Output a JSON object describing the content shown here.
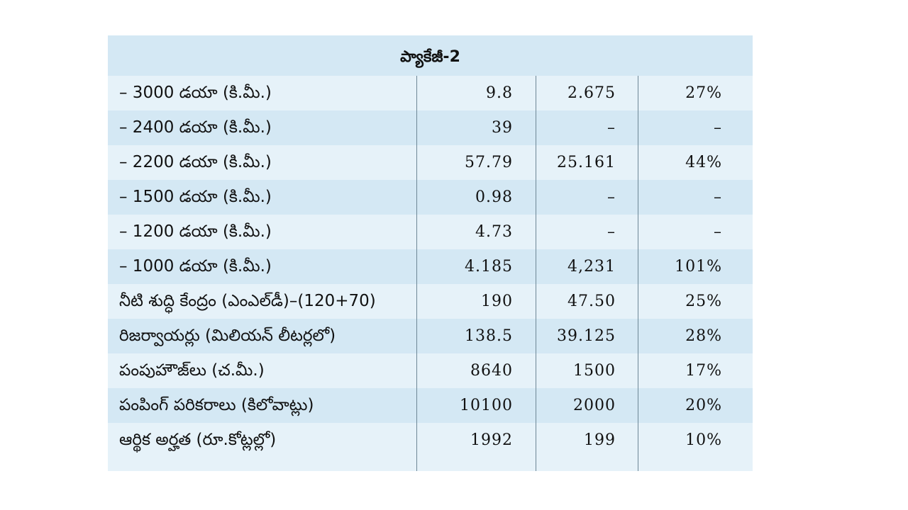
{
  "title": "ప్యాకేజీ-2",
  "rows": [
    {
      "label": "– 3000 డయా (కి.మీ.)",
      "v1": "9.8",
      "v2": "2.675",
      "v3": "27%"
    },
    {
      "label": "– 2400 డయా (కి.మీ.)",
      "v1": "39",
      "v2": "–",
      "v3": "–"
    },
    {
      "label": "– 2200 డయా (కి.మీ.)",
      "v1": "57.79",
      "v2": "25.161",
      "v3": "44%"
    },
    {
      "label": "– 1500 డయా (కి.మీ.)",
      "v1": "0.98",
      "v2": "–",
      "v3": "–"
    },
    {
      "label": "– 1200 డయా (కి.మీ.)",
      "v1": "4.73",
      "v2": "–",
      "v3": "–"
    },
    {
      "label": "– 1000 డయా (కి.మీ.)",
      "v1": "4.185",
      "v2": "4,231",
      "v3": "101%"
    },
    {
      "label": "నీటి శుద్ధి కేంద్రం (ఎంఎల్‌డీ)–(120+70)",
      "v1": "190",
      "v2": "47.50",
      "v3": "25%"
    },
    {
      "label": "రిజర్వాయర్లు (మిలియన్ లీటర్లలో)",
      "v1": "138.5",
      "v2": "39.125",
      "v3": "28%"
    },
    {
      "label": "పంపుహౌజ్‌లు (చ.మీ.)",
      "v1": "8640",
      "v2": "1500",
      "v3": "17%"
    },
    {
      "label": "పంపింగ్ పరికరాలు (కిలోవాట్లు)",
      "v1": "10100",
      "v2": "2000",
      "v3": "20%"
    },
    {
      "label": "ఆర్థిక అర్హత (రూ.కోట్లల్లో)",
      "v1": "1992",
      "v2": "199",
      "v3": "10%"
    }
  ]
}
